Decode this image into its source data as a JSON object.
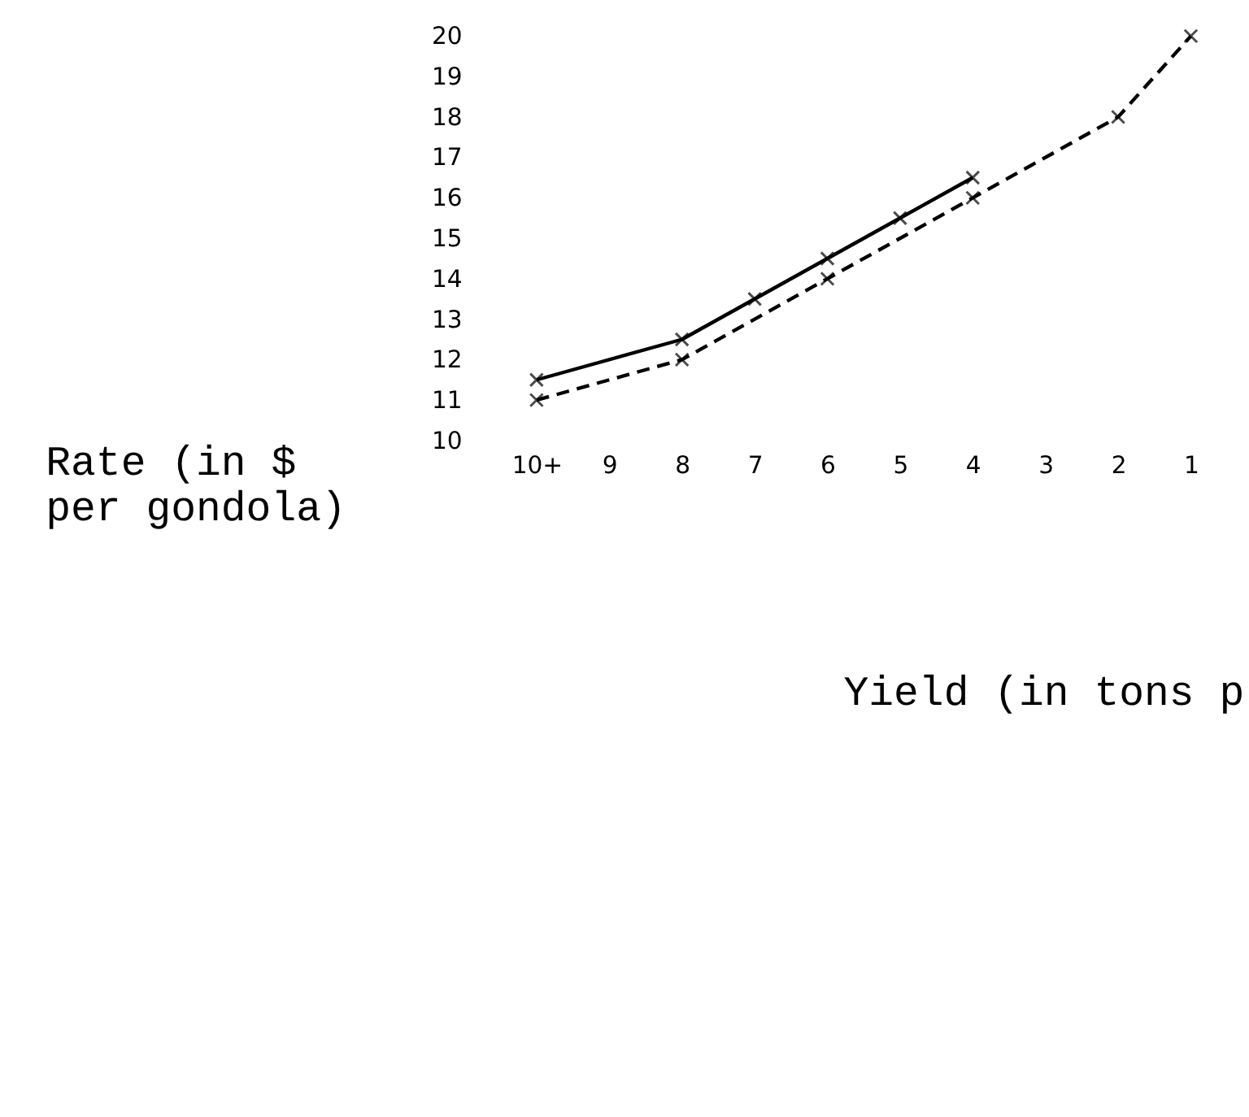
{
  "chart_data": {
    "type": "line",
    "categories": [
      "10+",
      "9",
      "8",
      "7",
      "6",
      "5",
      "4",
      "3",
      "2",
      "1"
    ],
    "series": [
      {
        "color": "#000000",
        "line_style": "solid",
        "values": [
          11.5,
          null,
          12.5,
          13.5,
          14.5,
          15.5,
          16.5,
          null,
          null,
          null
        ]
      },
      {
        "color": "#000000",
        "line_style": "dashed",
        "values": [
          11,
          null,
          12,
          null,
          14,
          null,
          16,
          null,
          18,
          20
        ]
      }
    ],
    "xlabel": "Yield (in tons p",
    "ylabel": "Rate (in $ per gondola)",
    "ylim": [
      10,
      20
    ],
    "yticks": [
      10,
      11,
      12,
      13,
      14,
      15,
      16,
      17,
      18,
      19,
      20
    ],
    "marker": "cross",
    "grid": false
  }
}
